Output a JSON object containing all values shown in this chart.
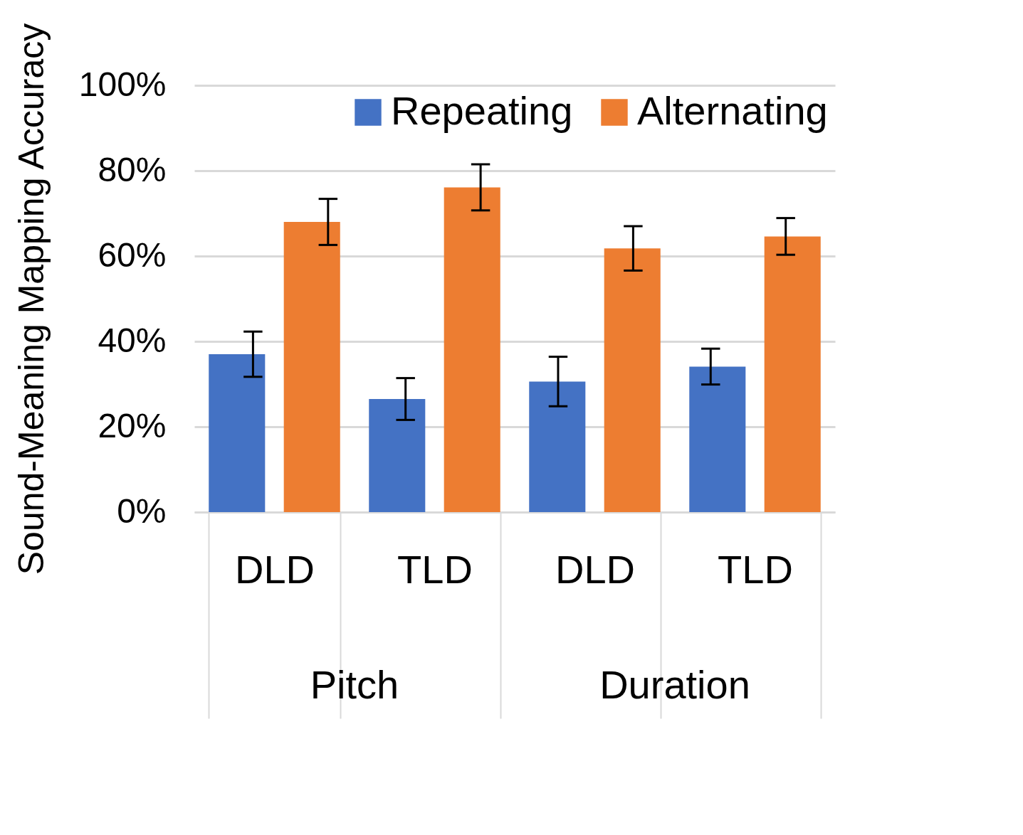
{
  "chart_data": {
    "type": "bar",
    "ylabel": "Sound-Meaning Mapping Accuracy",
    "categories": [
      "DLD",
      "TLD",
      "DLD",
      "TLD"
    ],
    "series": [
      {
        "name": "Repeating",
        "color": "#4472c4",
        "values": [
          37,
          26.5,
          30.6,
          34.1
        ],
        "errors": [
          5.3,
          4.9,
          5.8,
          4.2
        ]
      },
      {
        "name": "Alternating",
        "color": "#ed7d31",
        "values": [
          68,
          76.1,
          61.8,
          64.6
        ],
        "errors": [
          5.4,
          5.4,
          5.2,
          4.3
        ]
      }
    ],
    "ylim": [
      0,
      100
    ],
    "yticks": [
      {
        "value": 0,
        "label": "0%"
      },
      {
        "value": 20,
        "label": "20%"
      },
      {
        "value": 40,
        "label": "40%"
      },
      {
        "value": 60,
        "label": "60%"
      },
      {
        "value": 80,
        "label": "80%"
      },
      {
        "value": 100,
        "label": "100%"
      }
    ],
    "annotations": [
      "Pitch",
      "Duration"
    ],
    "grid": "y",
    "legend": "top right"
  }
}
